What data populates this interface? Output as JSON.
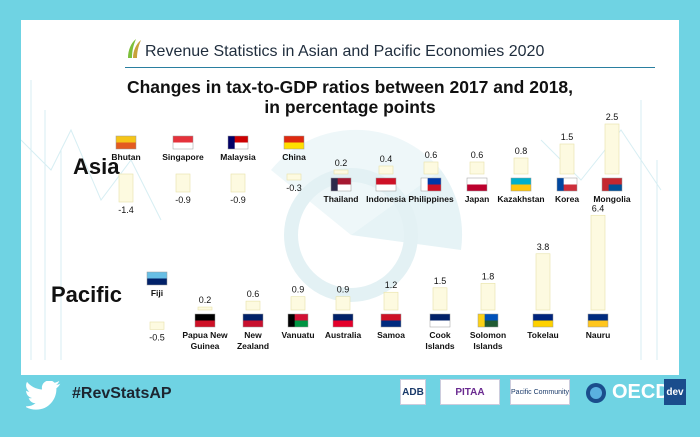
{
  "header": {
    "title": "Revenue Statistics in Asian and Pacific Economies 2020"
  },
  "chart_data": {
    "type": "bar",
    "title": "Changes in tax-to-GDP ratios between 2017 and 2018,",
    "subtitle": "in percentage points",
    "panels": [
      {
        "region": "Asia",
        "categories": [
          "Bhutan",
          "Singapore",
          "Malaysia",
          "China",
          "Thailand",
          "Indonesia",
          "Philippines",
          "Japan",
          "Kazakhstan",
          "Korea",
          "Mongolia"
        ],
        "values": [
          -1.4,
          -0.9,
          -0.9,
          -0.3,
          0.2,
          0.4,
          0.6,
          0.6,
          0.8,
          1.5,
          2.5
        ],
        "value_labels": [
          "-1.4",
          "-0.9",
          "-0.9",
          "-0.3",
          "0.2",
          "0.4",
          "0.6",
          "0.6",
          "0.8",
          "1.5",
          "2.5"
        ]
      },
      {
        "region": "Pacific",
        "categories": [
          "Fiji",
          "Papua New Guinea",
          "New Zealand",
          "Vanuatu",
          "Australia",
          "Samoa",
          "Cook Islands",
          "Solomon Islands",
          "Tokelau",
          "Nauru"
        ],
        "values": [
          -0.5,
          0.2,
          0.6,
          0.9,
          0.9,
          1.2,
          1.5,
          1.8,
          3.8,
          6.4
        ],
        "value_labels": [
          "-0.5",
          "0.2",
          "0.6",
          "0.9",
          "0.9",
          "1.2",
          "1.5",
          "1.8",
          "3.8",
          "6.4"
        ]
      }
    ],
    "bar_color": "#fdfae0",
    "bar_outline": "#e8e2a8"
  },
  "footer": {
    "hashtag": "#RevStatsAP",
    "logos": [
      "ADB",
      "PITAA",
      "Pacific Community",
      "OECD",
      "dev"
    ]
  },
  "colors": {
    "background": "#6fd3e3",
    "panel": "#ffffff",
    "accent": "#2a7fa0"
  },
  "icons": [
    "oecd-leaf-logo-icon",
    "twitter-bird-icon"
  ]
}
